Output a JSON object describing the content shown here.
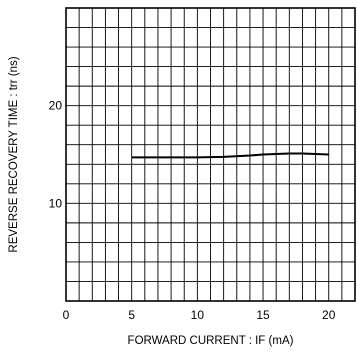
{
  "chart_data": {
    "type": "line",
    "title": "",
    "xlabel": "FORWARD  CURRENT : IF (mA)",
    "ylabel": "REVERSE  RECOVERY  TIME : trr (ns)",
    "xlim": [
      0,
      22
    ],
    "ylim": [
      0,
      30
    ],
    "x_ticks": [
      0,
      5,
      10,
      15,
      20
    ],
    "y_ticks": [
      10,
      20
    ],
    "grid": true,
    "legend": "none",
    "series": [
      {
        "x": [
          5,
          7,
          10,
          12,
          14,
          15,
          16,
          17,
          18,
          19,
          20
        ],
        "y": [
          14.7,
          14.7,
          14.7,
          14.75,
          14.9,
          15.0,
          15.05,
          15.1,
          15.1,
          15.05,
          15.0
        ]
      }
    ]
  }
}
